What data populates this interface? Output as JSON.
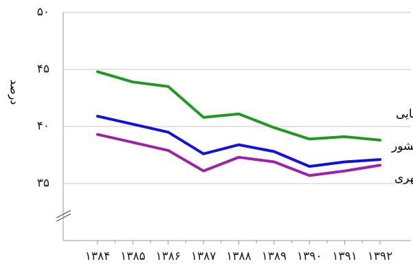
{
  "chart_data": {
    "type": "line",
    "ylabel": "درصد",
    "xlabel": "",
    "title": "",
    "ylim": [
      30,
      50
    ],
    "yticks": [
      35,
      40,
      45,
      50
    ],
    "ytick_labels": [
      "۳۵",
      "۴۰",
      "۴۵",
      "۵۰"
    ],
    "axis_break": true,
    "grid": true,
    "legend": "inline labels at right end of lines",
    "categories": [
      "۱۳۸۴",
      "۱۳۸۵",
      "۱۳۸۶",
      "۱۳۸۷",
      "۱۳۸۸",
      "۱۳۸۹",
      "۱۳۹۰",
      "۱۳۹۱",
      "۱۳۹۲"
    ],
    "series": [
      {
        "name": "نقاط روستایی",
        "color": "#1f9a1f",
        "values": [
          44.8,
          43.9,
          43.5,
          40.8,
          41.1,
          39.9,
          38.9,
          39.1,
          38.8
        ]
      },
      {
        "name": "کل کشور",
        "color": "#1010e0",
        "values": [
          40.9,
          40.2,
          39.5,
          37.6,
          38.4,
          37.8,
          36.5,
          36.9,
          37.1
        ]
      },
      {
        "name": "نقاط شهری",
        "color": "#a020a8",
        "values": [
          39.3,
          38.6,
          37.9,
          36.1,
          37.3,
          36.9,
          35.7,
          36.1,
          36.6
        ]
      }
    ]
  }
}
